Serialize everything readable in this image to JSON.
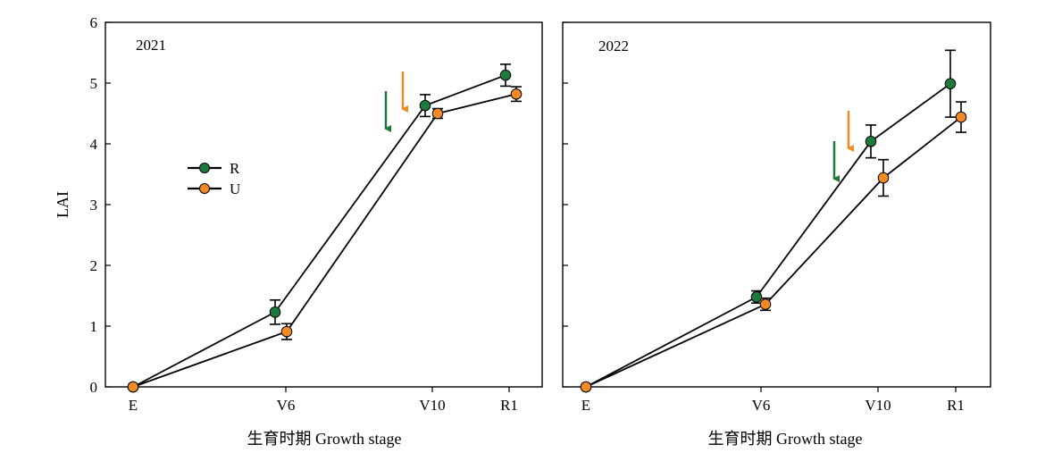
{
  "chart_data": [
    {
      "type": "line",
      "title": "2021",
      "xlabel": "生育时期 Growth stage",
      "ylabel": "LAI",
      "ylim": [
        0,
        6
      ],
      "yticks": [
        0,
        1,
        2,
        3,
        4,
        5,
        6
      ],
      "grid": false,
      "legend_position": "left-middle",
      "categories": [
        "E",
        "V6",
        "V10",
        "R1"
      ],
      "series": [
        {
          "name": "R",
          "color": "#1e7a3c",
          "values": [
            0,
            1.23,
            4.63,
            5.13
          ],
          "errors": [
            0,
            0.2,
            0.18,
            0.18
          ]
        },
        {
          "name": "U",
          "color": "#f08a24",
          "values": [
            0,
            0.91,
            4.5,
            4.82
          ],
          "errors": [
            0,
            0.13,
            0.08,
            0.12
          ]
        }
      ],
      "annotations": [
        {
          "type": "arrow",
          "color": "#1e7a3c",
          "direction": "down"
        },
        {
          "type": "arrow",
          "color": "#f08a24",
          "direction": "down"
        }
      ]
    },
    {
      "type": "line",
      "title": "2022",
      "xlabel": "生育时期 Growth stage",
      "ylabel": "",
      "ylim": [
        0,
        6
      ],
      "grid": false,
      "categories": [
        "E",
        "V6",
        "V10",
        "R1"
      ],
      "series": [
        {
          "name": "R",
          "color": "#1e7a3c",
          "values": [
            0,
            1.48,
            4.04,
            4.99
          ],
          "errors": [
            0,
            0.1,
            0.27,
            0.55
          ]
        },
        {
          "name": "U",
          "color": "#f08a24",
          "values": [
            0,
            1.36,
            3.44,
            4.44
          ],
          "errors": [
            0,
            0.1,
            0.3,
            0.25
          ]
        }
      ],
      "annotations": [
        {
          "type": "arrow",
          "color": "#1e7a3c",
          "direction": "down"
        },
        {
          "type": "arrow",
          "color": "#f08a24",
          "direction": "down"
        }
      ]
    }
  ]
}
